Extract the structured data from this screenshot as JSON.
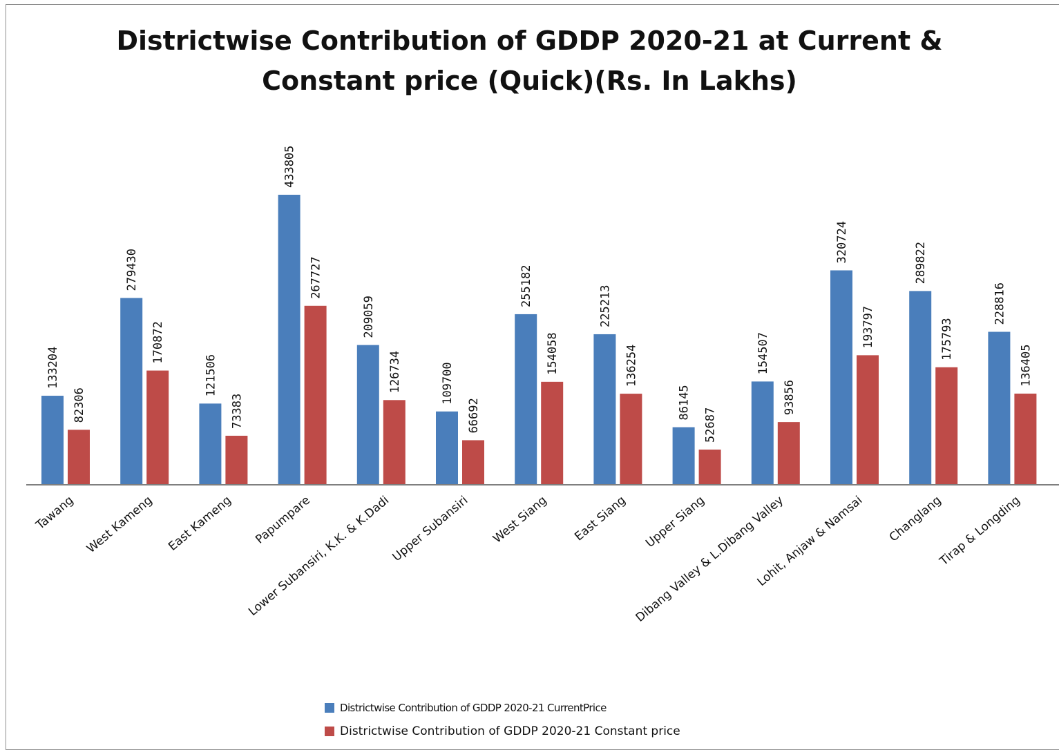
{
  "chart_data": {
    "type": "bar",
    "title_lines": [
      "Districtwise Contribution of GDDP 2020-21 at Current &",
      "Constant price (Quick)(Rs. In Lakhs)"
    ],
    "categories": [
      "Tawang",
      "West Kameng",
      "East Kameng",
      "Papumpare",
      "Lower Subansiri, K.K. & K.Dadi",
      "Upper Subansiri",
      "West Siang",
      "East Siang",
      "Upper Siang",
      "Dibang Valley & L.Dibang Valley",
      "Lohit, Anjaw & Namsai",
      "Changlang",
      "Tirap & Longding"
    ],
    "series": [
      {
        "name": "Districtwise Contribution of GDDP 2020-21 CurrentPrice",
        "color": "#4a7ebb",
        "values": [
          133204,
          279430,
          121506,
          433805,
          209059,
          109700,
          255182,
          225213,
          86145,
          154507,
          320724,
          289822,
          228816
        ]
      },
      {
        "name": "Districtwise Contribution of GDDP 2020-21 Constant price",
        "color": "#be4b48",
        "values": [
          82306,
          170872,
          73383,
          267727,
          126734,
          66692,
          154058,
          136254,
          52687,
          93856,
          193797,
          175793,
          136405
        ]
      }
    ],
    "data_labels": true,
    "grid": false,
    "legend_position": "bottom",
    "xlabel": "",
    "ylabel": ""
  }
}
